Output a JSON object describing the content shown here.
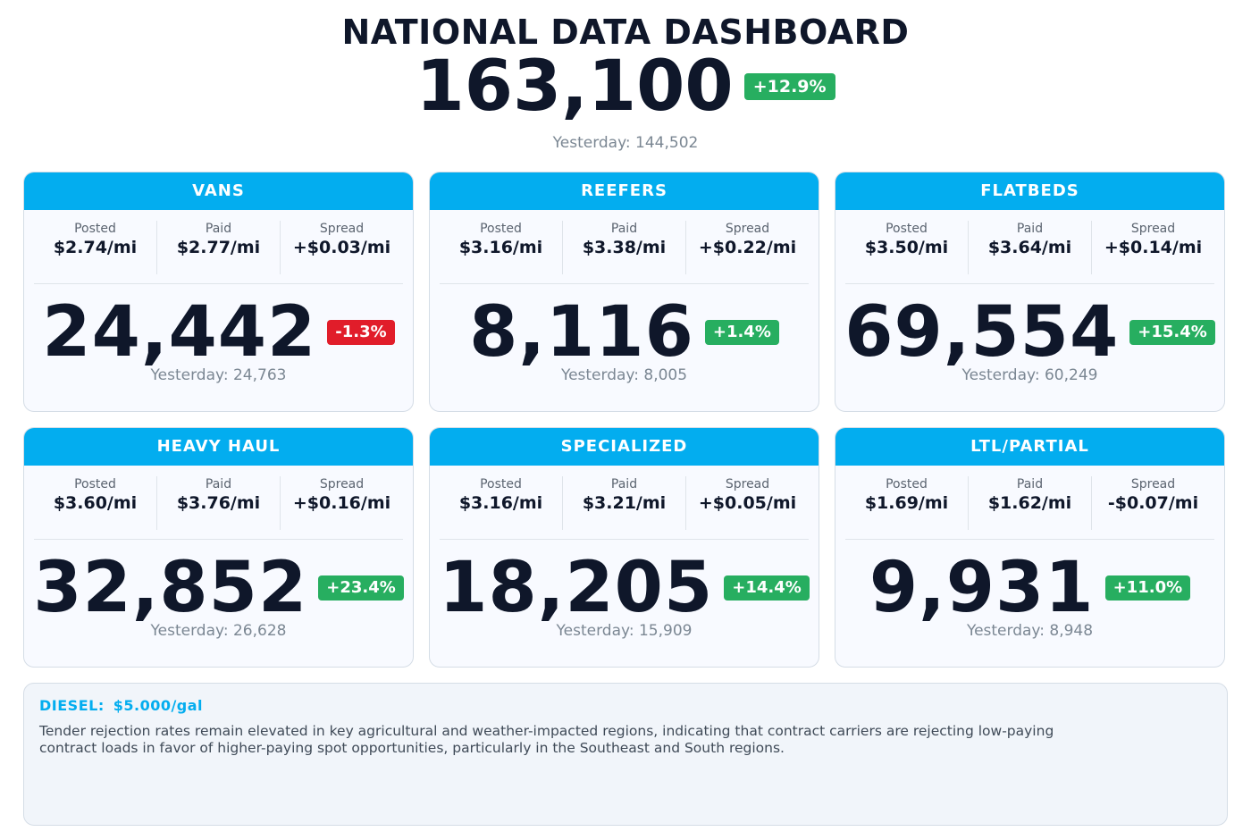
{
  "header": {
    "title": "NATIONAL DATA DASHBOARD",
    "total": "163,100",
    "total_change": "+12.9%",
    "total_change_direction": "positive",
    "total_yesterday": "Yesterday: 144,502"
  },
  "labels": {
    "posted": "Posted",
    "paid": "Paid",
    "spread": "Spread"
  },
  "colors": {
    "header_accent": "#03adef",
    "positive_badge": "#27ae60",
    "negative_badge": "#e11d2a",
    "text_dark": "#0f172a",
    "text_muted": "#7b8793"
  },
  "cards": [
    {
      "name": "VANS",
      "posted": "$2.74/mi",
      "paid": "$2.77/mi",
      "spread": "+$0.03/mi",
      "count": "24,442",
      "change": "-1.3%",
      "direction": "negative",
      "yesterday": "Yesterday: 24,763"
    },
    {
      "name": "REEFERS",
      "posted": "$3.16/mi",
      "paid": "$3.38/mi",
      "spread": "+$0.22/mi",
      "count": "8,116",
      "change": "+1.4%",
      "direction": "positive",
      "yesterday": "Yesterday: 8,005"
    },
    {
      "name": "FLATBEDS",
      "posted": "$3.50/mi",
      "paid": "$3.64/mi",
      "spread": "+$0.14/mi",
      "count": "69,554",
      "change": "+15.4%",
      "direction": "positive",
      "yesterday": "Yesterday: 60,249"
    },
    {
      "name": "HEAVY HAUL",
      "posted": "$3.60/mi",
      "paid": "$3.76/mi",
      "spread": "+$0.16/mi",
      "count": "32,852",
      "change": "+23.4%",
      "direction": "positive",
      "yesterday": "Yesterday: 26,628"
    },
    {
      "name": "SPECIALIZED",
      "posted": "$3.16/mi",
      "paid": "$3.21/mi",
      "spread": "+$0.05/mi",
      "count": "18,205",
      "change": "+14.4%",
      "direction": "positive",
      "yesterday": "Yesterday: 15,909"
    },
    {
      "name": "LTL/PARTIAL",
      "posted": "$1.69/mi",
      "paid": "$1.62/mi",
      "spread": "-$0.07/mi",
      "count": "9,931",
      "change": "+11.0%",
      "direction": "positive",
      "yesterday": "Yesterday: 8,948"
    }
  ],
  "notes": {
    "diesel_label": "DIESEL:",
    "diesel_value": "$5.000/gal",
    "commentary": "Tender rejection rates remain elevated in key agricultural and weather-impacted regions, indicating that contract carriers are rejecting low-paying contract loads in favor of higher-paying spot opportunities, particularly in the Southeast and South regions."
  }
}
